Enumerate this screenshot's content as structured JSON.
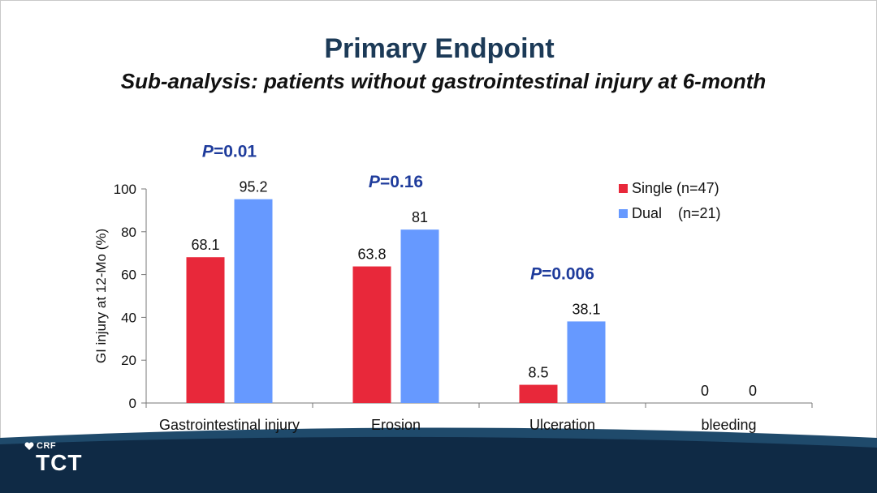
{
  "slide": {
    "title": "Primary Endpoint",
    "subtitle": "Sub-analysis: patients without gastrointestinal injury at 6-month"
  },
  "logo": {
    "small": "CRF",
    "main": "TCT"
  },
  "colors": {
    "title": "#1c3a57",
    "single": "#e8283a",
    "dual": "#6699ff",
    "pvalue": "#1f3c9c",
    "footer_dark": "#0f2a45",
    "footer_wave": "#1f4a6b"
  },
  "chart_data": {
    "type": "bar",
    "categories": [
      "Gastrointestinal injury",
      "Erosion",
      "Ulceration",
      "bleeding"
    ],
    "series": [
      {
        "name": "Single (n=47)",
        "values": [
          68.1,
          63.8,
          8.5,
          0
        ],
        "labels": [
          "68.1",
          "63.8",
          "8.5",
          "0"
        ]
      },
      {
        "name": "Dual    (n=21)",
        "values": [
          95.2,
          81,
          38.1,
          0
        ],
        "labels": [
          "95.2",
          "81",
          "38.1",
          "0"
        ]
      }
    ],
    "p_values": [
      {
        "prefix": "P",
        "value": "=0.01"
      },
      {
        "prefix": "P",
        "value": "=0.16"
      },
      {
        "prefix": "P",
        "value": "=0.006"
      },
      null
    ],
    "ylabel": "GI injury at 12-Mo (%)",
    "xlabel": "",
    "ylim": [
      0,
      100
    ],
    "yticks": [
      0,
      20,
      40,
      60,
      80,
      100
    ],
    "legend_position": "top-right",
    "grid": false
  }
}
